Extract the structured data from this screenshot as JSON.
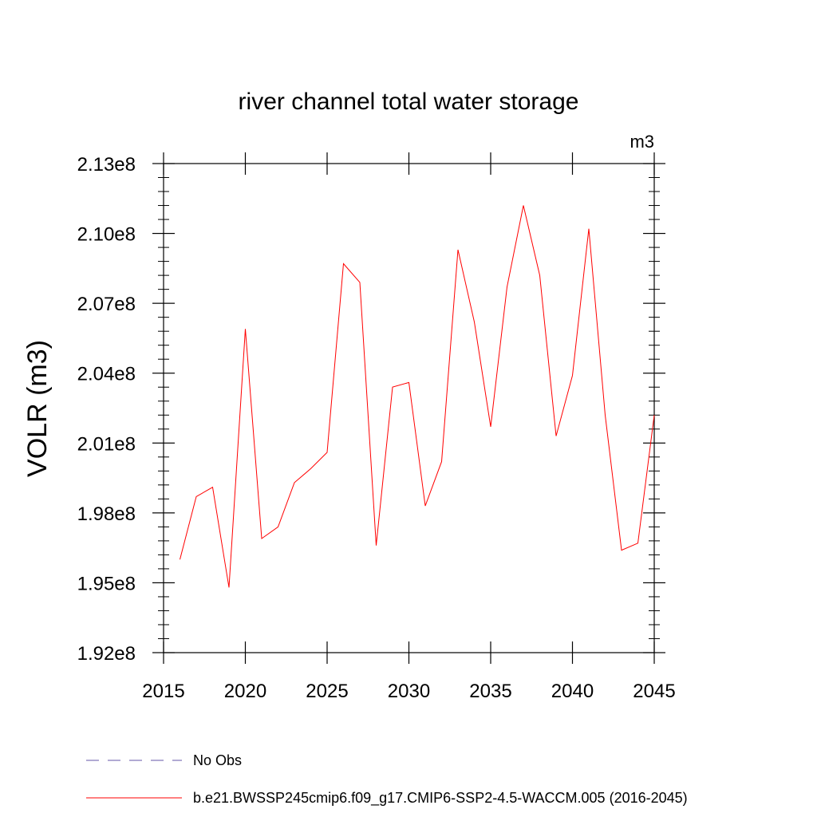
{
  "chart_data": {
    "type": "line",
    "title": "river channel total water storage",
    "units": "m3",
    "ylabel": "VOLR  (m3)",
    "xlabel": "",
    "xlim": [
      2015,
      2045
    ],
    "ylim": [
      192000000,
      213000000
    ],
    "x_ticks": [
      2015,
      2020,
      2025,
      2030,
      2035,
      2040,
      2045
    ],
    "x_tick_labels": [
      "2015",
      "2020",
      "2025",
      "2030",
      "2035",
      "2040",
      "2045"
    ],
    "y_ticks": [
      192000000,
      195000000,
      198000000,
      201000000,
      204000000,
      207000000,
      210000000,
      213000000
    ],
    "y_tick_labels": [
      "1.92e8",
      "1.95e8",
      "1.98e8",
      "2.01e8",
      "2.04e8",
      "2.07e8",
      "2.10e8",
      "2.13e8"
    ],
    "grid": false,
    "legend": {
      "placement": "bottom",
      "entries": [
        {
          "label": "No Obs",
          "color": "#6655aa",
          "style": "dashed"
        },
        {
          "label": "b.e21.BWSSP245cmip6.f09_g17.CMIP6-SSP2-4.5-WACCM.005 (2016-2045)",
          "color": "#ff0000",
          "style": "solid"
        }
      ]
    },
    "series": [
      {
        "name": "b.e21.BWSSP245cmip6.f09_g17.CMIP6-SSP2-4.5-WACCM.005 (2016-2045)",
        "color": "#ff0000",
        "x": [
          2016,
          2017,
          2018,
          2019,
          2020,
          2021,
          2022,
          2023,
          2024,
          2025,
          2026,
          2027,
          2028,
          2029,
          2030,
          2031,
          2032,
          2033,
          2034,
          2035,
          2036,
          2037,
          2038,
          2039,
          2040,
          2041,
          2042,
          2043,
          2044,
          2045
        ],
        "y": [
          196000000,
          198700000,
          199100000,
          194800000,
          205900000,
          196900000,
          197400000,
          199300000,
          199900000,
          200600000,
          208700000,
          207900000,
          196600000,
          203400000,
          203600000,
          198300000,
          200200000,
          209300000,
          206200000,
          201700000,
          207700000,
          211200000,
          208200000,
          201300000,
          203900000,
          210200000,
          202200000,
          196400000,
          196700000,
          202200000
        ]
      }
    ]
  }
}
